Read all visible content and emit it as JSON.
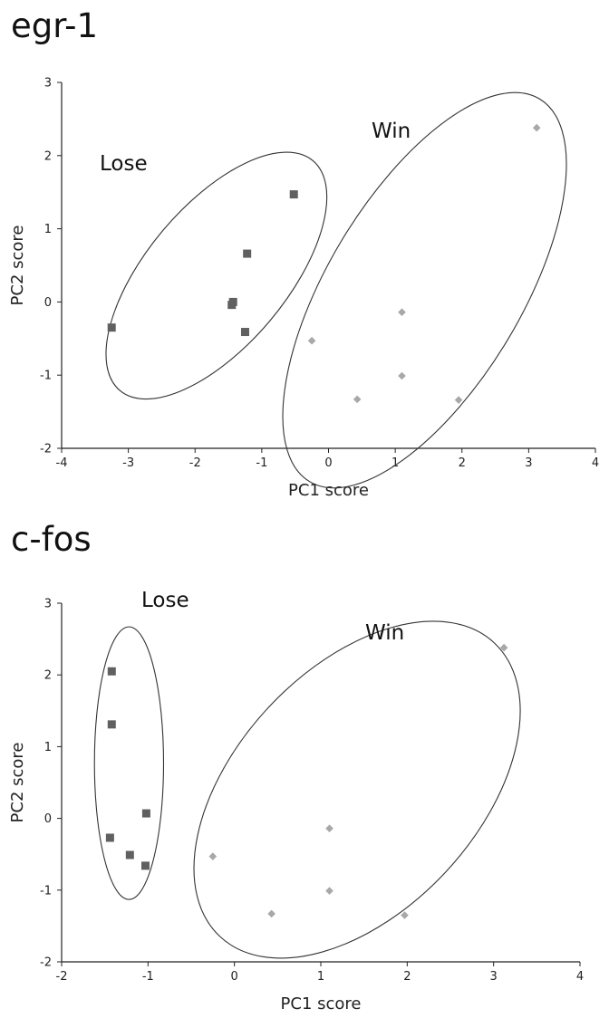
{
  "chart_data": [
    {
      "type": "scatter",
      "title": "egr-1",
      "xlabel": "PC1 score",
      "ylabel": "PC2 score",
      "xlim": [
        -4,
        4
      ],
      "ylim": [
        -2,
        3
      ],
      "xticks": [
        "-4",
        "-3",
        "-2",
        "-1",
        "0",
        "1",
        "2",
        "3",
        "4"
      ],
      "yticks": [
        "-2",
        "-1",
        "0",
        "1",
        "2",
        "3"
      ],
      "grid": false,
      "legend": "none",
      "series": [
        {
          "group_label": "Lose",
          "marker": "square",
          "color": "#606060",
          "x": [
            -3.25,
            -1.45,
            -1.43,
            -1.25,
            -1.22,
            -0.52
          ],
          "y": [
            -0.35,
            -0.04,
            0.0,
            -0.41,
            0.66,
            1.47
          ]
        },
        {
          "group_label": "Win",
          "marker": "diamond",
          "color": "#a8a8a8",
          "x": [
            -0.25,
            0.43,
            1.1,
            1.1,
            1.95,
            3.12
          ],
          "y": [
            -0.53,
            -1.33,
            -0.14,
            -1.01,
            -1.34,
            2.38
          ]
        }
      ],
      "ellipses": [
        {
          "label": "Lose",
          "cx": -1.68,
          "cy": 0.36,
          "rx_axis": 1.05,
          "ry_axis": 2.05,
          "rotation_deg": 40
        },
        {
          "label": "Win",
          "cx": 1.44,
          "cy": 0.16,
          "rx_axis": 1.45,
          "ry_axis": 3.05,
          "rotation_deg": 31
        }
      ]
    },
    {
      "type": "scatter",
      "title": "c-fos",
      "xlabel": "PC1 score",
      "ylabel": "PC2 score",
      "xlim": [
        -2,
        4
      ],
      "ylim": [
        -2,
        3
      ],
      "xticks": [
        "-2",
        "-1",
        "0",
        "1",
        "2",
        "3",
        "4"
      ],
      "yticks": [
        "-2",
        "-1",
        "0",
        "1",
        "2",
        "3"
      ],
      "grid": false,
      "legend": "none",
      "series": [
        {
          "group_label": "Lose",
          "marker": "square",
          "color": "#606060",
          "x": [
            -1.42,
            -1.42,
            -1.44,
            -1.21,
            -1.03,
            -1.02
          ],
          "y": [
            2.05,
            1.31,
            -0.27,
            -0.51,
            -0.66,
            0.07
          ]
        },
        {
          "group_label": "Win",
          "marker": "diamond",
          "color": "#a8a8a8",
          "x": [
            -0.25,
            0.43,
            1.1,
            1.1,
            1.97,
            3.12
          ],
          "y": [
            -0.53,
            -1.33,
            -0.14,
            -1.01,
            -1.35,
            2.38
          ]
        }
      ],
      "ellipses": [
        {
          "label": "Lose",
          "cx": -1.22,
          "cy": 0.77,
          "rx_axis": 0.4,
          "ry_axis": 1.9,
          "rotation_deg": 0
        },
        {
          "label": "Win",
          "cx": 1.42,
          "cy": 0.4,
          "rx_axis": 1.4,
          "ry_axis": 2.8,
          "rotation_deg": 43
        }
      ]
    }
  ]
}
